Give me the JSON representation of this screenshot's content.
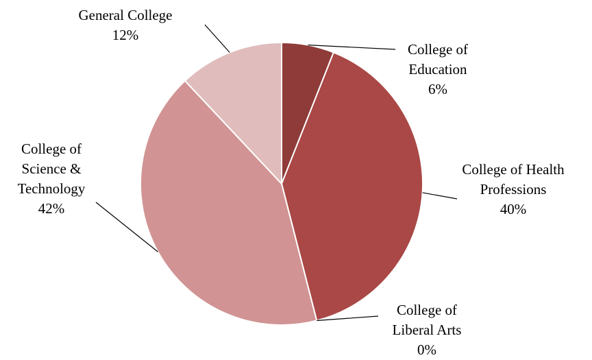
{
  "chart_data": {
    "type": "pie",
    "slices": [
      {
        "label_lines": [
          "College of",
          "Education"
        ],
        "percent_label": "6%",
        "value": 6,
        "color": "#8e3b39"
      },
      {
        "label_lines": [
          "College of Health",
          "Professions"
        ],
        "percent_label": "40%",
        "value": 40,
        "color": "#a94846"
      },
      {
        "label_lines": [
          "College of",
          "Liberal Arts"
        ],
        "percent_label": "0%",
        "value": 0,
        "color": "#b86664"
      },
      {
        "label_lines": [
          "College of",
          "Science &",
          "Technology"
        ],
        "percent_label": "42%",
        "value": 42,
        "color": "#d19393"
      },
      {
        "label_lines": [
          "General College"
        ],
        "percent_label": "12%",
        "value": 12,
        "color": "#e0bcbc"
      }
    ],
    "start_angle_deg": 0,
    "direction": "clockwise",
    "legend": "none",
    "data_labels": "outside-with-leader-lines"
  }
}
